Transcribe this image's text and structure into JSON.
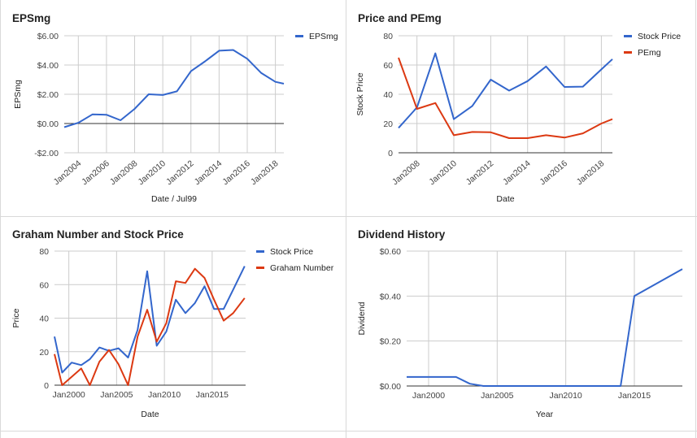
{
  "colors": {
    "blue": "#3366cc",
    "red": "#dc3912",
    "grid": "#cccccc",
    "zero": "#333333",
    "text": "#444444"
  },
  "charts": [
    {
      "title": "EPSmg",
      "chart_data": {
        "type": "line",
        "title": "EPSmg",
        "xlabel": "Date / Jul99",
        "ylabel": "EPSmg",
        "xlim": [
          2003,
          2018.6
        ],
        "ylim": [
          -2,
          6
        ],
        "y_ticks": [
          -2,
          0,
          2,
          4,
          6
        ],
        "y_tick_labels": [
          "-$2.00",
          "$0.00",
          "$2.00",
          "$4.00",
          "$6.00"
        ],
        "x_ticks": [
          2004,
          2006,
          2008,
          2010,
          2012,
          2014,
          2016,
          2018
        ],
        "x_tick_labels": [
          "Jan2004",
          "Jan2006",
          "Jan2008",
          "Jan2010",
          "Jan2012",
          "Jan2014",
          "Jan2016",
          "Jan2018"
        ],
        "x_tick_rotate": true,
        "zero_line": true,
        "legend": "right",
        "series": [
          {
            "name": "EPSmg",
            "color": "#3366cc",
            "x": [
              2003,
              2004,
              2005,
              2006,
              2007,
              2008,
              2009,
              2010,
              2011,
              2012,
              2013,
              2014,
              2015,
              2016,
              2017,
              2018,
              2018.6
            ],
            "y": [
              -0.25,
              0.05,
              0.62,
              0.6,
              0.22,
              1.0,
              2.0,
              1.95,
              2.2,
              3.58,
              4.25,
              4.98,
              5.03,
              4.43,
              3.45,
              2.85,
              2.72
            ]
          }
        ]
      }
    },
    {
      "title": "Price and PEmg",
      "chart_data": {
        "type": "line",
        "title": "Price and PEmg",
        "xlabel": "Date",
        "ylabel": "Stock Price",
        "xlim": [
          2007,
          2018.6
        ],
        "ylim": [
          0,
          80
        ],
        "y_ticks": [
          0,
          20,
          40,
          60,
          80
        ],
        "y_tick_labels": [
          "0",
          "20",
          "40",
          "60",
          "80"
        ],
        "x_ticks": [
          2008,
          2010,
          2012,
          2014,
          2016,
          2018
        ],
        "x_tick_labels": [
          "Jan2008",
          "Jan2010",
          "Jan2012",
          "Jan2014",
          "Jan2016",
          "Jan2018"
        ],
        "x_tick_rotate": true,
        "legend": "right",
        "series": [
          {
            "name": "Stock Price",
            "color": "#3366cc",
            "x": [
              2007,
              2008,
              2009,
              2010,
              2011,
              2012,
              2013,
              2014,
              2015,
              2016,
              2017,
              2018,
              2018.6
            ],
            "y": [
              17,
              31,
              68,
              23,
              32,
              50,
              42.5,
              49,
              59,
              45,
              45.2,
              57,
              64
            ]
          },
          {
            "name": "PEmg",
            "color": "#dc3912",
            "x": [
              2007,
              2008,
              2009,
              2010,
              2011,
              2012,
              2013,
              2014,
              2015,
              2016,
              2017,
              2018,
              2018.6
            ],
            "y": [
              65,
              30,
              34,
              12,
              14.2,
              14,
              10,
              10,
              12,
              10.4,
              13.3,
              20,
              23
            ]
          }
        ]
      }
    },
    {
      "title": "Graham Number and Stock Price",
      "chart_data": {
        "type": "line",
        "title": "Graham Number and Stock Price",
        "xlabel": "Date",
        "ylabel": "Price",
        "xlim": [
          1998.5,
          2018.5
        ],
        "ylim": [
          0,
          80
        ],
        "y_ticks": [
          0,
          20,
          40,
          60,
          80
        ],
        "y_tick_labels": [
          "0",
          "20",
          "40",
          "60",
          "80"
        ],
        "x_ticks": [
          2000,
          2005,
          2010,
          2015
        ],
        "x_tick_labels": [
          "Jan2000",
          "Jan2005",
          "Jan2010",
          "Jan2015"
        ],
        "x_tick_rotate": false,
        "legend": "right",
        "series": [
          {
            "name": "Stock Price",
            "color": "#3366cc",
            "x": [
              1998.5,
              1999.3,
              2000.3,
              2001.3,
              2002.2,
              2003.2,
              2004.2,
              2005.2,
              2006.2,
              2007.2,
              2008.2,
              2009.2,
              2010.2,
              2011.2,
              2012.2,
              2013.2,
              2014.2,
              2015.2,
              2016.2,
              2017.2,
              2018.4
            ],
            "y": [
              29,
              7.5,
              13.5,
              12,
              15.5,
              22.5,
              20.5,
              22,
              16.5,
              33,
              68,
              23.5,
              32,
              51,
              43,
              49,
              59,
              45.5,
              45.5,
              57,
              71
            ]
          },
          {
            "name": "Graham Number",
            "color": "#dc3912",
            "x": [
              1998.5,
              1999.3,
              2000.3,
              2001.3,
              2002.2,
              2003.2,
              2004.2,
              2005.2,
              2006.2,
              2007.2,
              2008.2,
              2009.2,
              2010.2,
              2011.2,
              2012.2,
              2013.2,
              2014.2,
              2015.2,
              2016.2,
              2017.2,
              2018.4
            ],
            "y": [
              18.5,
              0,
              5,
              10,
              0,
              14,
              21,
              12.5,
              0,
              29,
              45,
              26,
              37,
              62,
              61,
              69.5,
              64,
              51,
              38.5,
              43,
              52
            ]
          }
        ]
      }
    },
    {
      "title": "Dividend History",
      "chart_data": {
        "type": "line",
        "title": "Dividend History",
        "xlabel": "Year",
        "ylabel": "Dividend",
        "xlim": [
          1998.4,
          2018.5
        ],
        "ylim": [
          0,
          0.6
        ],
        "y_ticks": [
          0,
          0.2,
          0.4,
          0.6
        ],
        "y_tick_labels": [
          "$0.00",
          "$0.20",
          "$0.40",
          "$0.60"
        ],
        "x_ticks": [
          2000,
          2005,
          2010,
          2015
        ],
        "x_tick_labels": [
          "Jan2000",
          "Jan2005",
          "Jan2010",
          "Jan2015"
        ],
        "x_tick_rotate": false,
        "legend": "none",
        "series": [
          {
            "name": "",
            "color": "#3366cc",
            "x": [
              1998.4,
              2002,
              2003,
              2004,
              2014,
              2015,
              2018.5
            ],
            "y": [
              0.04,
              0.04,
              0.01,
              0,
              0,
              0.4,
              0.52
            ]
          }
        ]
      }
    }
  ]
}
